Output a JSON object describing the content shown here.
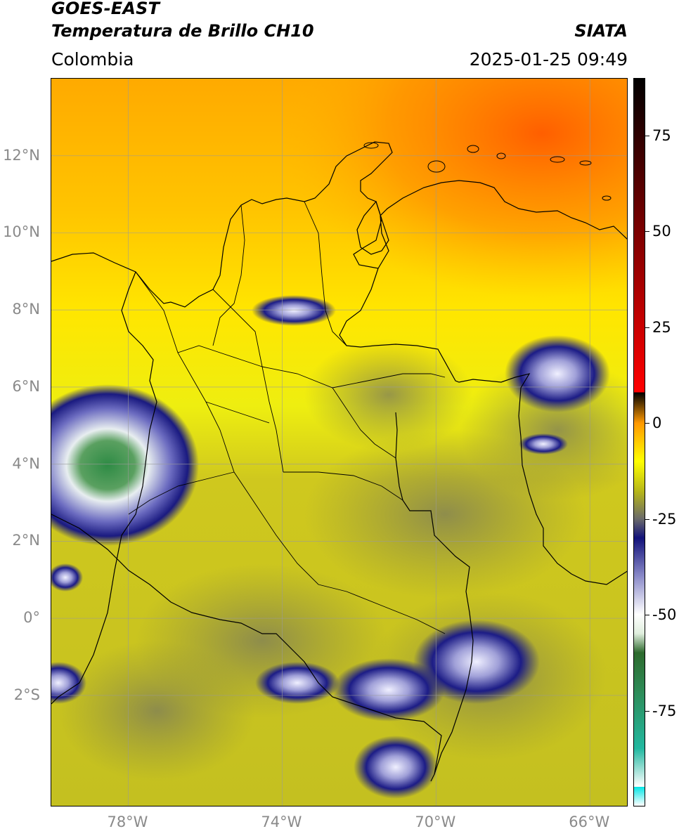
{
  "header": {
    "title_line1": "GOES-EAST",
    "title_line2": "Temperatura de Brillo CH10",
    "agency": "SIATA",
    "region": "Colombia",
    "timestamp": "2025-01-25 09:49"
  },
  "map": {
    "lon_range": [
      -80,
      -65
    ],
    "lat_range": [
      -4.9,
      14
    ],
    "lat_ticks": [
      {
        "value": 12,
        "label": "12°N"
      },
      {
        "value": 10,
        "label": "10°N"
      },
      {
        "value": 8,
        "label": "8°N"
      },
      {
        "value": 6,
        "label": "6°N"
      },
      {
        "value": 4,
        "label": "4°N"
      },
      {
        "value": 2,
        "label": "2°N"
      },
      {
        "value": 0,
        "label": "0°"
      },
      {
        "value": -2,
        "label": "2°S"
      }
    ],
    "lon_ticks": [
      {
        "value": -78,
        "label": "78°W"
      },
      {
        "value": -74,
        "label": "74°W"
      },
      {
        "value": -70,
        "label": "70°W"
      },
      {
        "value": -66,
        "label": "66°W"
      }
    ],
    "grid": true,
    "colors": {
      "warm": "#ff7a00",
      "mid": "#ffee00",
      "cool": "#c9c21c",
      "cloud": "#1c1c8e",
      "deep": "#2f8f3f"
    }
  },
  "colorbar": {
    "range": [
      -100,
      90
    ],
    "ticks": [
      {
        "value": 75,
        "label": "75"
      },
      {
        "value": 50,
        "label": "50"
      },
      {
        "value": 25,
        "label": "25"
      },
      {
        "value": 0,
        "label": "0"
      },
      {
        "value": -25,
        "label": "-25"
      },
      {
        "value": -50,
        "label": "-50"
      },
      {
        "value": -75,
        "label": "-75"
      }
    ],
    "stops": [
      {
        "value": -100,
        "color": "#ffffff"
      },
      {
        "value": -95,
        "color": "#ffffff"
      },
      {
        "value": -95,
        "color": "#00e5e5"
      },
      {
        "value": -85,
        "color": "#22b8a0"
      },
      {
        "value": -70,
        "color": "#2e8b57"
      },
      {
        "value": -60,
        "color": "#2d6a2d"
      },
      {
        "value": -55,
        "color": "#dfeedd"
      },
      {
        "value": -50,
        "color": "#ffffff"
      },
      {
        "value": -40,
        "color": "#8a8ac8"
      },
      {
        "value": -30,
        "color": "#12127a"
      },
      {
        "value": -25,
        "color": "#6a6a6a"
      },
      {
        "value": -18,
        "color": "#b5b51a"
      },
      {
        "value": -10,
        "color": "#ffff00"
      },
      {
        "value": 0,
        "color": "#ff9900"
      },
      {
        "value": 8,
        "color": "#ff0000"
      },
      {
        "value": 8,
        "color": "#000000"
      },
      {
        "value": 90,
        "color": "#000000"
      }
    ]
  }
}
